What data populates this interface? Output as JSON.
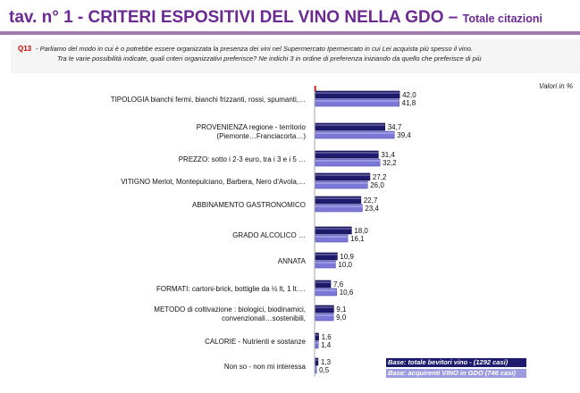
{
  "header": {
    "title": "tav. n° 1 - CRITERI  ESPOSITIVI DEL VINO NELLA GDO – ",
    "subtitle": "Totale citazioni"
  },
  "question": {
    "code": "Q13",
    "line1": "- Parliamo del modo in cui è o potrebbe essere organizzata la presenza dei vini nel Supermercato Ipermercato in cui Lei acquista più spesso il vino.",
    "line2": "Tra le varie possibilità indicate, quali criteri organizzativi preferisce? Ne indichi 3 in ordine di preferenza iniziando da quello che preferisce di più"
  },
  "unit_label": "Valori in %",
  "colors": {
    "series1": "#1e1a6e",
    "series2": "#7b78d8",
    "title": "#6b2a92"
  },
  "chart_data": {
    "type": "bar",
    "orientation": "horizontal",
    "categories": [
      [
        "TIPOLOGIA bianchi fermi, bianchi frizzanti, rossi, spumanti,…"
      ],
      [
        "PROVENIENZA  regione - territorio",
        "(Piemonte…Franciacorta…)"
      ],
      [
        "PREZZO: sotto i 2-3 euro, tra i 3 e i 5 …"
      ],
      [
        "VITIGNO  Merlot, Montepulciano, Barbera, Nero d'Avola,…"
      ],
      [
        "ABBINAMENTO GASTRONOMICO"
      ],
      [
        "GRADO ALCOLICO …"
      ],
      [
        "ANNATA"
      ],
      [
        "FORMATI: cartoni-brick, bottiglie da ½ lt, 1 lt.…"
      ],
      [
        "METODO di coltivazione : biologici, biodinamici,",
        "convenzionali…sostenibili,"
      ],
      [
        "CALORIE - Nutrienti e sostanze"
      ],
      [
        "Non so  - non mi interessa"
      ]
    ],
    "series": [
      {
        "name": "Base: totale bevitori vino - (1292 casi)",
        "values": [
          42.0,
          34.7,
          31.4,
          27.2,
          22.7,
          18.0,
          10.9,
          7.6,
          9.1,
          1.6,
          1.3
        ],
        "labels": [
          "42,0",
          "34,7",
          "31,4",
          "27,2",
          "22,7",
          "18,0",
          "10,9",
          "7,6",
          "9,1",
          "1,6",
          "1,3"
        ]
      },
      {
        "name": "Base: acquirenti VINO in GDO (746 casi)",
        "values": [
          41.8,
          39.4,
          32.2,
          26.0,
          23.4,
          16.1,
          10.0,
          10.6,
          9.0,
          1.4,
          0.5
        ],
        "labels": [
          "41,8",
          "39,4",
          "32,2",
          "26,0",
          "23,4",
          "16,1",
          "10,0",
          "10,6",
          "9,0",
          "1,4",
          "0,5"
        ]
      }
    ],
    "legend": "bottom-right"
  }
}
